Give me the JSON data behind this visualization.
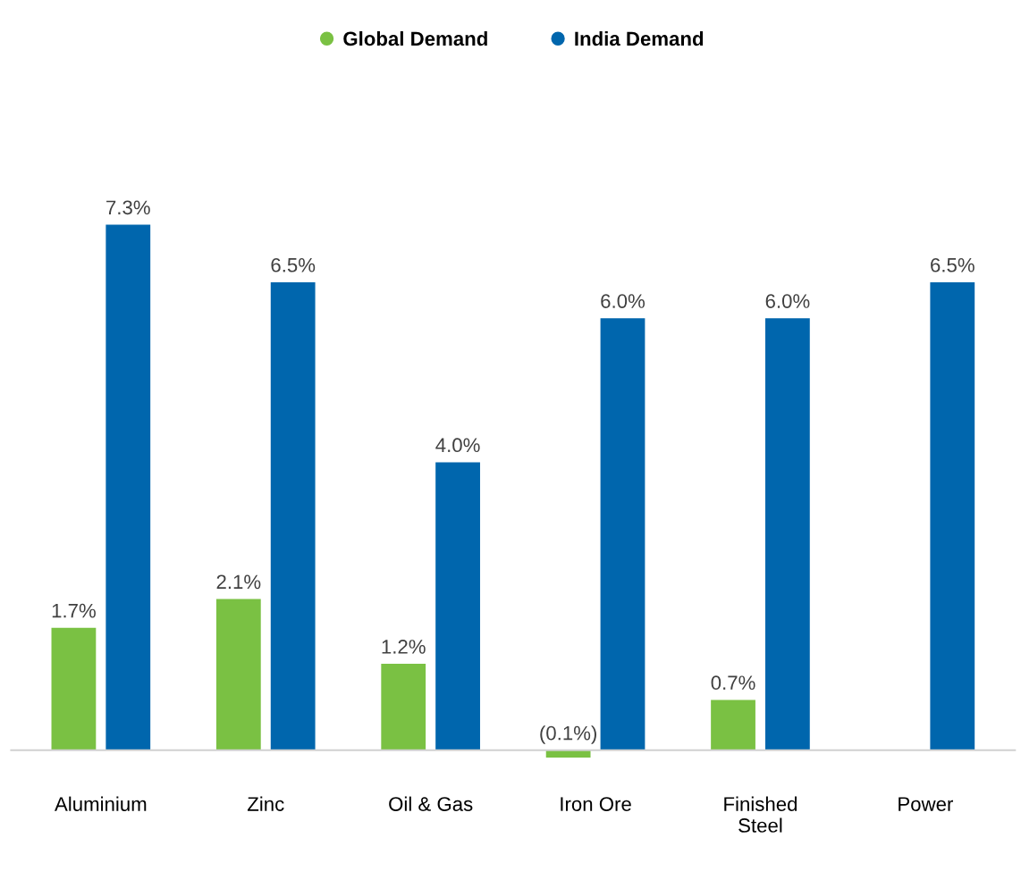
{
  "chart_data": {
    "type": "bar",
    "categories": [
      "Aluminium",
      "Zinc",
      "Oil & Gas",
      "Iron Ore",
      "Finished\nSteel",
      "Power"
    ],
    "series": [
      {
        "name": "Global Demand",
        "color": "#7ac143",
        "values": [
          1.7,
          2.1,
          1.2,
          -0.1,
          0.7,
          null
        ],
        "value_labels": [
          "1.7%",
          "2.1%",
          "1.2%",
          "(0.1%)",
          "0.7%",
          null
        ]
      },
      {
        "name": "India Demand",
        "color": "#0066ad",
        "values": [
          7.3,
          6.5,
          4.0,
          6.0,
          6.0,
          6.5
        ],
        "value_labels": [
          "7.3%",
          "6.5%",
          "4.0%",
          "6.0%",
          "6.0%",
          "6.5%"
        ]
      }
    ],
    "legend": "top",
    "marker": "circle",
    "grid": false
  }
}
